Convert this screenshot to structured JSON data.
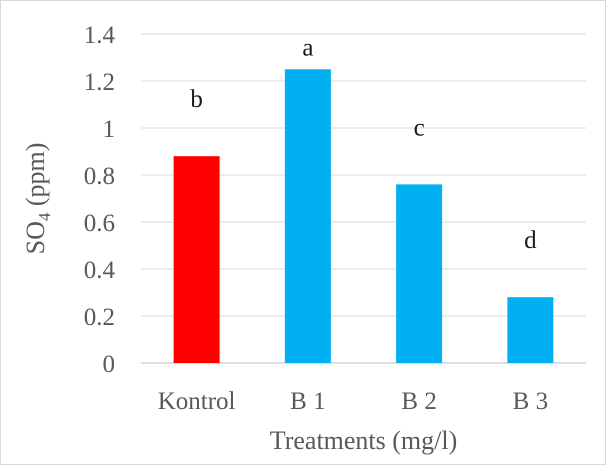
{
  "chart_data": {
    "type": "bar",
    "categories": [
      "Kontrol",
      "B 1",
      "B 2",
      "B 3"
    ],
    "values": [
      0.88,
      1.25,
      0.76,
      0.28
    ],
    "significance_letters": [
      "b",
      "a",
      "c",
      "d"
    ],
    "bar_colors": [
      "#ff0000",
      "#00b0f0",
      "#00b0f0",
      "#00b0f0"
    ],
    "xlabel": "Treatments (mg/l)",
    "ylabel": {
      "base": "SO",
      "sub": "4",
      "rest": " (ppm)"
    },
    "ylim": [
      0,
      1.4
    ],
    "yticks": [
      "0",
      "0.2",
      "0.4",
      "0.6",
      "0.8",
      "1",
      "1.2",
      "1.4"
    ],
    "grid": true,
    "legend": "none"
  }
}
